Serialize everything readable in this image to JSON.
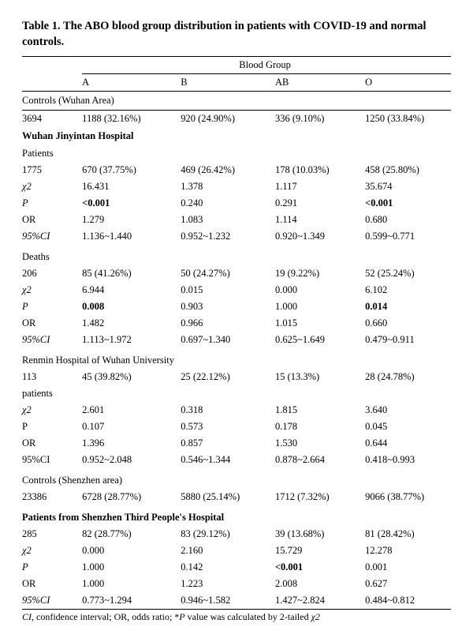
{
  "title": "Table 1. The ABO blood group distribution in patients with COVID-19 and normal controls.",
  "header": {
    "group_label": "Blood Group",
    "cols": [
      "A",
      "B",
      "AB",
      "O"
    ]
  },
  "row_labels": {
    "chi2": "χ2",
    "p_italic": "P",
    "p_plain": "P",
    "or": "OR",
    "ci_italic": "95%CI",
    "ci_plain": "95%CI"
  },
  "sections": [
    {
      "heading": "Controls (Wuhan Area)",
      "n": "3694",
      "counts": [
        "1188 (32.16%)",
        "920 (24.90%)",
        "336 (9.10%)",
        "1250 (33.84%)"
      ]
    },
    {
      "heading": "Wuhan Jinyintan Hospital",
      "subheading": "Patients",
      "n": "1775",
      "counts": [
        "670 (37.75%)",
        "469 (26.42%)",
        "178 (10.03%)",
        "458 (25.80%)"
      ],
      "chi2": [
        "16.431",
        "1.378",
        "1.117",
        "35.674"
      ],
      "p": [
        "<0.001",
        "0.240",
        "0.291",
        "<0.001"
      ],
      "p_bold": [
        true,
        false,
        false,
        true
      ],
      "or": [
        "1.279",
        "1.083",
        "1.114",
        "0.680"
      ],
      "ci": [
        "1.136~1.440",
        "0.952~1.232",
        "0.920~1.349",
        "0.599~0.771"
      ]
    },
    {
      "subheading": "Deaths",
      "n": "206",
      "counts": [
        "85 (41.26%)",
        "50 (24.27%)",
        "19 (9.22%)",
        "52 (25.24%)"
      ],
      "chi2": [
        "6.944",
        "0.015",
        "0.000",
        "6.102"
      ],
      "p": [
        "0.008",
        "0.903",
        "1.000",
        "0.014"
      ],
      "p_bold": [
        true,
        false,
        false,
        true
      ],
      "or": [
        "1.482",
        "0.966",
        "1.015",
        "0.660"
      ],
      "ci": [
        "1.113~1.972",
        "0.697~1.340",
        "0.625~1.649",
        "0.479~0.911"
      ]
    },
    {
      "heading": "Renmin Hospital of Wuhan University",
      "n_line1": "113",
      "n_line2": "patients",
      "counts": [
        "45 (39.82%)",
        "25 (22.12%)",
        "15 (13.3%)",
        "28 (24.78%)"
      ],
      "chi2": [
        "2.601",
        "0.318",
        "1.815",
        "3.640"
      ],
      "p": [
        "0.107",
        "0.573",
        "0.178",
        "0.045"
      ],
      "p_bold": [
        false,
        false,
        false,
        false
      ],
      "or": [
        "1.396",
        "0.857",
        "1.530",
        "0.644"
      ],
      "ci": [
        "0.952~2.048",
        "0.546~1.344",
        "0.878~2.664",
        "0.418~0.993"
      ],
      "plain_labels": true
    },
    {
      "heading": "Controls (Shenzhen area)",
      "n": "23386",
      "counts": [
        "6728 (28.77%)",
        "5880 (25.14%)",
        "1712 (7.32%)",
        "9066 (38.77%)"
      ]
    },
    {
      "heading": "Patients from Shenzhen Third People's Hospital",
      "n": "285",
      "counts": [
        "82 (28.77%)",
        "83 (29.12%)",
        "39 (13.68%)",
        "81 (28.42%)"
      ],
      "chi2": [
        "0.000",
        "2.160",
        "15.729",
        "12.278"
      ],
      "p": [
        "1.000",
        "0.142",
        "<0.001",
        "0.001"
      ],
      "p_bold": [
        false,
        false,
        true,
        false
      ],
      "or": [
        "1.000",
        "1.223",
        "2.008",
        "0.627"
      ],
      "ci": [
        "0.773~1.294",
        "0.946~1.582",
        "1.427~2.824",
        "0.484~0.812"
      ]
    }
  ],
  "footnote_parts": {
    "ci": "CI",
    "t1": ", confidence interval; OR, odds ratio; *",
    "p": "P",
    "t2": " value was calculated by 2-tailed ",
    "chi2": "χ2"
  }
}
